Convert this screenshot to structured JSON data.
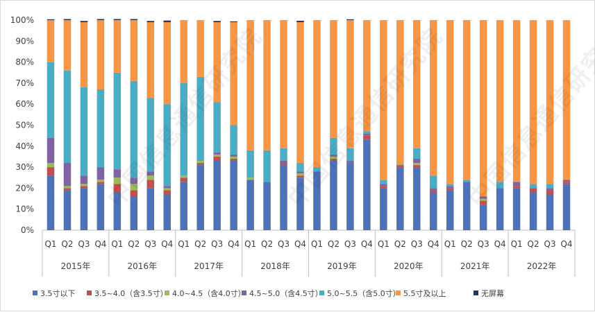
{
  "chart_data": {
    "type": "bar",
    "stacked": true,
    "percent": true,
    "title": "",
    "xlabel": "",
    "ylabel": "",
    "ylim": [
      0,
      100
    ],
    "yticks": [
      "0%",
      "10%",
      "20%",
      "30%",
      "40%",
      "50%",
      "60%",
      "70%",
      "80%",
      "90%",
      "100%"
    ],
    "grid": false,
    "legend_position": "bottom",
    "years": [
      "2015年",
      "2016年",
      "2017年",
      "2018年",
      "2019年",
      "2020年",
      "2021年",
      "2022年"
    ],
    "quarters": [
      "Q1",
      "Q2",
      "Q3",
      "Q4"
    ],
    "categories": [
      "2015 Q1",
      "2015 Q2",
      "2015 Q3",
      "2015 Q4",
      "2016 Q1",
      "2016 Q2",
      "2016 Q3",
      "2016 Q4",
      "2017 Q1",
      "2017 Q2",
      "2017 Q3",
      "2017 Q4",
      "2018 Q1",
      "2018 Q2",
      "2018 Q3",
      "2018 Q4",
      "2019 Q1",
      "2019 Q2",
      "2019 Q3",
      "2019 Q4",
      "2020 Q1",
      "2020 Q2",
      "2020 Q3",
      "2020 Q4",
      "2021 Q1",
      "2021 Q2",
      "2021 Q3",
      "2021 Q4",
      "2022 Q1",
      "2022 Q2",
      "2022 Q3",
      "2022 Q4"
    ],
    "series": [
      {
        "name": "3.5寸以下",
        "color": "#4e72b8",
        "values": [
          26,
          19,
          20,
          22,
          18,
          16,
          20,
          17,
          23,
          31,
          33,
          33,
          24,
          23,
          31,
          25,
          28,
          33,
          32,
          43,
          20,
          30,
          30,
          18,
          19,
          23,
          12,
          20,
          20,
          18,
          17,
          22
        ]
      },
      {
        "name": "3.5~4.0（含3.5寸）",
        "color": "#c0504d",
        "values": [
          4,
          1,
          1,
          1,
          4,
          3,
          4,
          2,
          2,
          1,
          2,
          1,
          0,
          0,
          1,
          1,
          0,
          1,
          0,
          2,
          1,
          1,
          1,
          1,
          1,
          0,
          2,
          0,
          1,
          2,
          2,
          1
        ]
      },
      {
        "name": "4.0~4.5（含4.0寸）",
        "color": "#9bbb59",
        "values": [
          2,
          1,
          1,
          1,
          3,
          3,
          2,
          1,
          1,
          1,
          1,
          1,
          1,
          0,
          0,
          1,
          0,
          1,
          0,
          0,
          0,
          1,
          1,
          0,
          0,
          0,
          1,
          0,
          0,
          0,
          0,
          0
        ]
      },
      {
        "name": "4.5~5.0（含4.5寸）",
        "color": "#8064a2",
        "values": [
          12,
          11,
          4,
          6,
          4,
          3,
          2,
          1,
          0,
          0,
          1,
          1,
          0,
          0,
          1,
          1,
          0,
          1,
          1,
          1,
          1,
          0,
          2,
          1,
          1,
          0,
          1,
          0,
          2,
          0,
          1,
          1
        ]
      },
      {
        "name": "5.0~5.5（含5.0寸）",
        "color": "#4bacc6",
        "values": [
          36,
          44,
          42,
          37,
          46,
          46,
          35,
          39,
          44,
          40,
          24,
          14,
          13,
          15,
          6,
          4,
          2,
          8,
          6,
          1,
          2,
          0,
          5,
          6,
          1,
          1,
          0,
          3,
          0,
          2,
          2,
          0
        ]
      },
      {
        "name": "5.5寸及以上",
        "color": "#f79646",
        "values": [
          20,
          24,
          31,
          33,
          25,
          29,
          36,
          39,
          30,
          27,
          38,
          49,
          62,
          62,
          61,
          67,
          70,
          56,
          61,
          53,
          76,
          68,
          61,
          74,
          78,
          76,
          84,
          77,
          77,
          78,
          78,
          76
        ]
      },
      {
        "name": "无屏幕",
        "color": "#1f3864",
        "values": [
          0.4,
          0.5,
          0.6,
          0.5,
          0.5,
          0.5,
          0.6,
          0.8,
          0,
          0,
          0.6,
          0.4,
          0,
          0,
          0,
          0.7,
          0,
          0,
          0.4,
          0,
          0,
          0,
          0,
          0,
          0,
          0,
          0,
          0,
          0,
          0,
          0,
          0
        ]
      }
    ]
  },
  "watermark": [
    "中国信息通信研究院",
    "中国信息通信研究院",
    "中国信息通信研究院"
  ]
}
